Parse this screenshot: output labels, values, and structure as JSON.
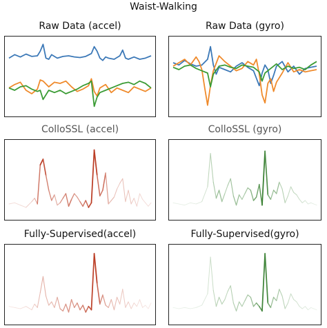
{
  "figure": {
    "title": "Waist-Walking"
  },
  "colors": {
    "x_axis": "#3b78b7",
    "y_axis": "#ef8a2b",
    "z_axis": "#3a9b34",
    "accel_saliency": "#b8341a",
    "gyro_saliency": "#2f7a28"
  },
  "chart_data": [
    {
      "id": "raw-accel",
      "type": "line",
      "title": "Raw Data (accel)",
      "xlim": [
        0,
        100
      ],
      "ylim": [
        -3,
        3
      ],
      "series": [
        {
          "color": "#3b78b7",
          "x": [
            0,
            4,
            8,
            12,
            16,
            20,
            22,
            24,
            26,
            28,
            30,
            34,
            38,
            42,
            46,
            50,
            54,
            58,
            60,
            62,
            64,
            66,
            68,
            70,
            74,
            78,
            80,
            82,
            84,
            88,
            92,
            96,
            100
          ],
          "y": [
            1.6,
            1.9,
            1.7,
            1.95,
            1.75,
            1.8,
            2.2,
            2.8,
            1.6,
            1.5,
            1.9,
            1.6,
            1.75,
            1.8,
            1.7,
            1.65,
            1.75,
            2.0,
            2.6,
            2.2,
            1.6,
            1.4,
            1.7,
            1.6,
            1.5,
            1.8,
            2.3,
            1.6,
            1.5,
            1.7,
            1.5,
            1.6,
            1.8
          ]
        },
        {
          "color": "#ef8a2b",
          "x": [
            0,
            4,
            8,
            12,
            16,
            20,
            22,
            24,
            28,
            32,
            36,
            40,
            44,
            48,
            52,
            56,
            58,
            60,
            62,
            64,
            68,
            72,
            76,
            80,
            84,
            88,
            92,
            96,
            100
          ],
          "y": [
            -1.0,
            -0.7,
            -0.5,
            -1.2,
            -1.5,
            -1.1,
            -0.3,
            -0.4,
            -0.9,
            -0.5,
            -0.6,
            -0.4,
            -0.9,
            -1.3,
            -1.1,
            -0.8,
            -0.2,
            -1.3,
            -1.7,
            -1.0,
            -0.7,
            -1.4,
            -1.0,
            -1.2,
            -1.4,
            -0.9,
            -1.1,
            -1.3,
            -1.0
          ]
        },
        {
          "color": "#3a9b34",
          "x": [
            0,
            4,
            8,
            12,
            16,
            20,
            22,
            24,
            28,
            32,
            36,
            40,
            44,
            48,
            52,
            56,
            58,
            60,
            62,
            64,
            68,
            72,
            76,
            80,
            84,
            88,
            92,
            96,
            100
          ],
          "y": [
            -1.0,
            -1.2,
            -0.9,
            -0.8,
            -1.1,
            -1.3,
            -1.2,
            -2.0,
            -1.2,
            -1.4,
            -1.2,
            -1.5,
            -1.3,
            -1.1,
            -0.8,
            -0.6,
            -0.4,
            -2.6,
            -1.8,
            -1.4,
            -1.2,
            -1.0,
            -0.8,
            -0.6,
            -0.5,
            -0.7,
            -0.4,
            -0.6,
            -1.0
          ]
        }
      ]
    },
    {
      "id": "raw-gyro",
      "type": "line",
      "title": "Raw Data (gyro)",
      "xlim": [
        0,
        100
      ],
      "ylim": [
        -3,
        3
      ],
      "series": [
        {
          "color": "#3b78b7",
          "x": [
            0,
            4,
            8,
            12,
            16,
            20,
            24,
            26,
            28,
            30,
            32,
            36,
            40,
            44,
            48,
            52,
            56,
            60,
            62,
            64,
            66,
            68,
            70,
            72,
            76,
            80,
            84,
            88,
            92,
            96,
            100
          ],
          "y": [
            1.2,
            1.0,
            1.4,
            1.1,
            0.9,
            1.0,
            1.5,
            2.6,
            1.0,
            0.2,
            0.8,
            0.6,
            0.4,
            0.9,
            1.2,
            0.8,
            0.5,
            -0.8,
            0.3,
            1.0,
            0.6,
            -0.6,
            0.1,
            0.9,
            1.3,
            0.4,
            0.9,
            0.2,
            0.7,
            0.8,
            0.9
          ]
        },
        {
          "color": "#ef8a2b",
          "x": [
            0,
            4,
            8,
            12,
            16,
            18,
            20,
            22,
            24,
            26,
            28,
            32,
            36,
            40,
            44,
            48,
            52,
            56,
            58,
            60,
            62,
            64,
            66,
            68,
            70,
            72,
            76,
            80,
            84,
            88,
            92,
            96,
            100
          ],
          "y": [
            0.9,
            1.2,
            1.5,
            1.0,
            1.7,
            1.3,
            0.6,
            -1.0,
            -2.5,
            -0.8,
            0.5,
            1.8,
            1.3,
            0.9,
            0.5,
            0.7,
            1.3,
            1.0,
            1.5,
            0.2,
            -1.6,
            -2.3,
            -0.6,
            -0.2,
            -1.3,
            -0.5,
            0.3,
            1.2,
            0.4,
            0.6,
            0.4,
            0.5,
            0.6
          ]
        },
        {
          "color": "#3a9b34",
          "x": [
            0,
            4,
            8,
            12,
            16,
            20,
            24,
            26,
            28,
            32,
            36,
            40,
            44,
            48,
            52,
            56,
            60,
            62,
            64,
            68,
            72,
            76,
            80,
            84,
            88,
            92,
            96,
            100
          ],
          "y": [
            0.8,
            0.6,
            0.9,
            1.0,
            0.7,
            0.5,
            0.3,
            -0.9,
            0.2,
            0.9,
            1.0,
            0.8,
            0.7,
            1.0,
            0.9,
            0.8,
            0.4,
            -0.4,
            0.3,
            0.7,
            1.1,
            0.6,
            0.9,
            0.7,
            0.8,
            0.6,
            1.0,
            1.3
          ]
        }
      ]
    },
    {
      "id": "collossl-accel",
      "type": "line",
      "title": "ColloSSL (accel)",
      "xlim": [
        0,
        100
      ],
      "ylim": [
        -3,
        3
      ],
      "gradient": "accel",
      "series": [
        {
          "color": "#b8341a",
          "x": [
            0,
            4,
            8,
            12,
            16,
            18,
            20,
            22,
            24,
            26,
            28,
            30,
            32,
            34,
            36,
            38,
            40,
            42,
            44,
            46,
            48,
            50,
            52,
            54,
            56,
            58,
            60,
            62,
            64,
            66,
            68,
            70,
            72,
            74,
            76,
            78,
            80,
            82,
            84,
            86,
            88,
            90,
            92,
            94,
            96,
            98,
            100
          ],
          "y": [
            -2.1,
            -2.0,
            -2.2,
            -2.4,
            -1.9,
            -1.6,
            -2.1,
            1.3,
            1.8,
            0.4,
            -0.9,
            -1.8,
            -1.3,
            -2.2,
            -2.0,
            -1.6,
            -1.2,
            -2.3,
            -1.7,
            -1.2,
            -1.5,
            -1.9,
            -2.3,
            -1.8,
            -2.4,
            -2.0,
            2.6,
            0.4,
            -1.4,
            -0.9,
            0.6,
            -2.1,
            -1.8,
            -1.5,
            -0.8,
            -0.3,
            0.1,
            -1.9,
            -0.9,
            -2.1,
            -1.6,
            -2.3,
            -1.2,
            -1.7,
            -2.0,
            -2.3,
            -2.0
          ],
          "weights": [
            0.1,
            0.1,
            0.1,
            0.15,
            0.2,
            0.3,
            0.4,
            0.9,
            1.0,
            0.7,
            0.5,
            0.6,
            0.4,
            0.3,
            0.4,
            0.6,
            0.5,
            0.7,
            0.6,
            0.5,
            0.4,
            0.5,
            0.7,
            0.6,
            0.85,
            0.9,
            1.0,
            0.9,
            0.5,
            0.8,
            0.6,
            0.3,
            0.3,
            0.3,
            0.2,
            0.2,
            0.3,
            0.2,
            0.25,
            0.2,
            0.2,
            0.15,
            0.15,
            0.1,
            0.1,
            0.1,
            0.1
          ]
        }
      ]
    },
    {
      "id": "collossl-gyro",
      "type": "line",
      "title": "ColloSSL (gyro)",
      "xlim": [
        0,
        100
      ],
      "ylim": [
        -3,
        3
      ],
      "gradient": "gyro",
      "series": [
        {
          "color": "#2f7a28",
          "x": [
            0,
            4,
            8,
            12,
            16,
            20,
            24,
            26,
            28,
            30,
            32,
            34,
            36,
            38,
            40,
            42,
            44,
            46,
            48,
            50,
            52,
            54,
            56,
            58,
            60,
            62,
            64,
            66,
            68,
            70,
            72,
            74,
            76,
            78,
            80,
            82,
            84,
            86,
            88,
            90,
            92,
            94,
            96,
            98,
            100
          ],
          "y": [
            -2.0,
            -2.1,
            -2.2,
            -2.0,
            -2.1,
            -1.9,
            -0.6,
            2.3,
            -0.2,
            -1.6,
            -0.9,
            -1.9,
            -1.2,
            -0.5,
            0.1,
            -1.4,
            -2.2,
            -1.3,
            -1.7,
            -1.2,
            -0.7,
            -0.9,
            -1.8,
            -1.5,
            -0.4,
            -2.2,
            2.5,
            -1.3,
            -1.7,
            -0.9,
            -1.2,
            -0.2,
            -0.8,
            -2.0,
            -1.4,
            -0.6,
            -1.1,
            -1.3,
            -1.7,
            -2.0,
            -1.8,
            -2.1,
            -2.0,
            -2.1,
            -2.2
          ],
          "weights": [
            0.05,
            0.05,
            0.05,
            0.05,
            0.08,
            0.1,
            0.2,
            0.3,
            0.3,
            0.4,
            0.5,
            0.4,
            0.3,
            0.3,
            0.4,
            0.4,
            0.5,
            0.4,
            0.3,
            0.4,
            0.4,
            0.5,
            0.6,
            0.7,
            0.6,
            0.9,
            1.0,
            0.7,
            0.5,
            0.4,
            0.6,
            0.3,
            0.3,
            0.3,
            0.2,
            0.25,
            0.25,
            0.2,
            0.2,
            0.15,
            0.15,
            0.1,
            0.1,
            0.05,
            0.05
          ]
        }
      ]
    },
    {
      "id": "supervised-accel",
      "type": "line",
      "title": "Fully-Supervised(accel)",
      "xlim": [
        0,
        100
      ],
      "ylim": [
        -3,
        3
      ],
      "gradient": "accel",
      "series": [
        {
          "color": "#b8341a",
          "x": [
            0,
            4,
            8,
            12,
            16,
            18,
            20,
            22,
            24,
            26,
            28,
            30,
            32,
            34,
            36,
            38,
            40,
            42,
            44,
            46,
            48,
            50,
            52,
            54,
            56,
            58,
            60,
            62,
            64,
            66,
            68,
            70,
            72,
            74,
            76,
            78,
            80,
            82,
            84,
            86,
            88,
            90,
            92,
            94,
            96,
            98,
            100
          ],
          "y": [
            -1.9,
            -2.0,
            -2.1,
            -1.9,
            -2.2,
            -1.7,
            -2.0,
            -0.7,
            0.7,
            -1.0,
            -1.8,
            -1.5,
            -2.0,
            -1.1,
            -2.1,
            -2.3,
            -1.7,
            -2.4,
            -1.3,
            -2.0,
            -1.6,
            -2.2,
            -1.8,
            -2.4,
            -1.9,
            -2.2,
            2.7,
            0.1,
            -1.7,
            -0.9,
            -1.8,
            -2.0,
            -1.3,
            -2.2,
            -1.1,
            -1.7,
            -0.4,
            -2.0,
            -1.5,
            -2.1,
            -1.6,
            -1.9,
            -1.3,
            -2.0,
            -1.8,
            -2.1,
            -1.6
          ],
          "weights": [
            0.05,
            0.05,
            0.1,
            0.1,
            0.15,
            0.2,
            0.25,
            0.3,
            0.35,
            0.3,
            0.3,
            0.3,
            0.3,
            0.35,
            0.4,
            0.5,
            0.45,
            0.55,
            0.45,
            0.5,
            0.5,
            0.55,
            0.6,
            0.65,
            0.8,
            0.85,
            1.0,
            0.9,
            0.6,
            0.5,
            0.4,
            0.35,
            0.3,
            0.3,
            0.25,
            0.25,
            0.2,
            0.2,
            0.2,
            0.15,
            0.15,
            0.1,
            0.1,
            0.1,
            0.05,
            0.05,
            0.05
          ]
        }
      ]
    },
    {
      "id": "supervised-gyro",
      "type": "line",
      "title": "Fully-Supervised(gyro)",
      "xlim": [
        0,
        100
      ],
      "ylim": [
        -3,
        3
      ],
      "gradient": "gyro",
      "series": [
        {
          "color": "#2f7a28",
          "x": [
            0,
            4,
            8,
            12,
            16,
            20,
            24,
            26,
            28,
            30,
            32,
            34,
            36,
            38,
            40,
            42,
            44,
            46,
            48,
            50,
            52,
            54,
            56,
            58,
            60,
            62,
            64,
            66,
            68,
            70,
            72,
            74,
            76,
            78,
            80,
            82,
            84,
            86,
            88,
            90,
            92,
            94,
            96,
            98,
            100
          ],
          "y": [
            -2.0,
            -2.1,
            -2.0,
            -2.1,
            -2.0,
            -1.8,
            -0.8,
            2.4,
            -0.5,
            -1.9,
            -1.1,
            -1.7,
            -1.3,
            -0.6,
            -0.1,
            -1.6,
            -2.3,
            -1.5,
            -1.9,
            -1.4,
            -0.9,
            -1.1,
            -1.9,
            -1.6,
            -1.9,
            -2.3,
            2.7,
            -1.6,
            -2.0,
            -1.1,
            -1.4,
            -0.4,
            -1.0,
            -2.1,
            -1.6,
            -0.8,
            -1.3,
            -1.5,
            -1.9,
            -2.1,
            -1.9,
            -2.2,
            -2.0,
            -2.1,
            -2.2
          ],
          "weights": [
            0.03,
            0.03,
            0.05,
            0.05,
            0.05,
            0.08,
            0.1,
            0.2,
            0.2,
            0.3,
            0.3,
            0.3,
            0.25,
            0.25,
            0.3,
            0.3,
            0.35,
            0.35,
            0.3,
            0.35,
            0.4,
            0.4,
            0.5,
            0.55,
            0.7,
            0.85,
            1.0,
            0.8,
            0.5,
            0.4,
            0.45,
            0.3,
            0.3,
            0.25,
            0.2,
            0.2,
            0.2,
            0.15,
            0.15,
            0.1,
            0.1,
            0.08,
            0.05,
            0.05,
            0.03
          ]
        }
      ]
    }
  ]
}
